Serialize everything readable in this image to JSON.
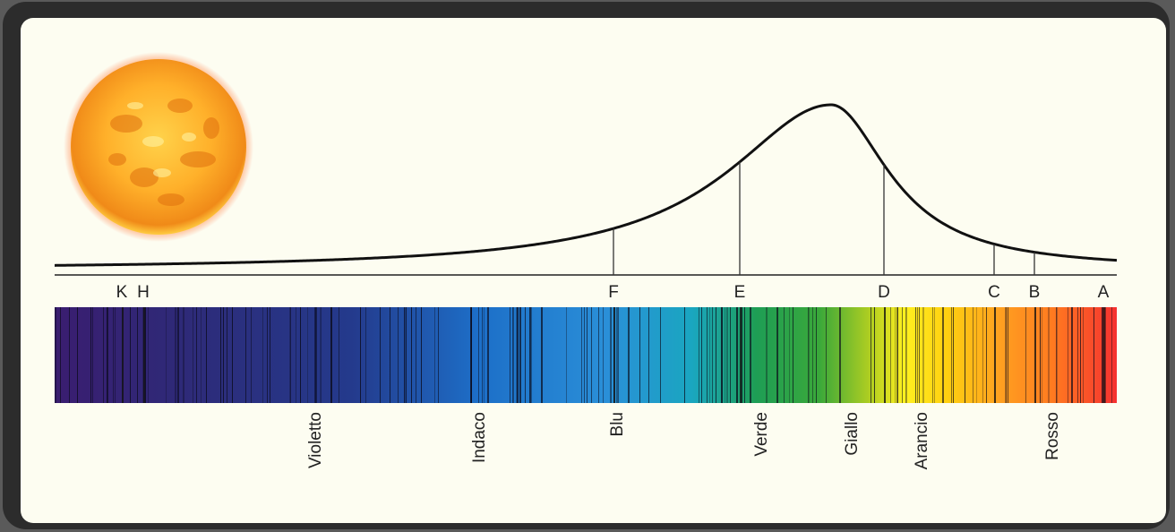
{
  "fraunhofer_lines": [
    {
      "id": "K",
      "label": "K"
    },
    {
      "id": "H",
      "label": "H"
    },
    {
      "id": "F",
      "label": "F"
    },
    {
      "id": "E",
      "label": "E"
    },
    {
      "id": "D",
      "label": "D"
    },
    {
      "id": "C",
      "label": "C"
    },
    {
      "id": "B",
      "label": "B"
    },
    {
      "id": "A",
      "label": "A"
    }
  ],
  "color_bands": [
    {
      "id": "violetto",
      "label": "Violetto"
    },
    {
      "id": "indaco",
      "label": "Indaco"
    },
    {
      "id": "blu",
      "label": "Blu"
    },
    {
      "id": "verde",
      "label": "Verde"
    },
    {
      "id": "giallo",
      "label": "Giallo"
    },
    {
      "id": "arancio",
      "label": "Arancio"
    },
    {
      "id": "rosso",
      "label": "Rosso"
    }
  ],
  "colors": {
    "panel_background": "#fdfdf1",
    "frame": "#2c2c2c",
    "curve": "#111111",
    "sun_core": "#ffb22a",
    "sun_edge": "#f07a10"
  }
}
